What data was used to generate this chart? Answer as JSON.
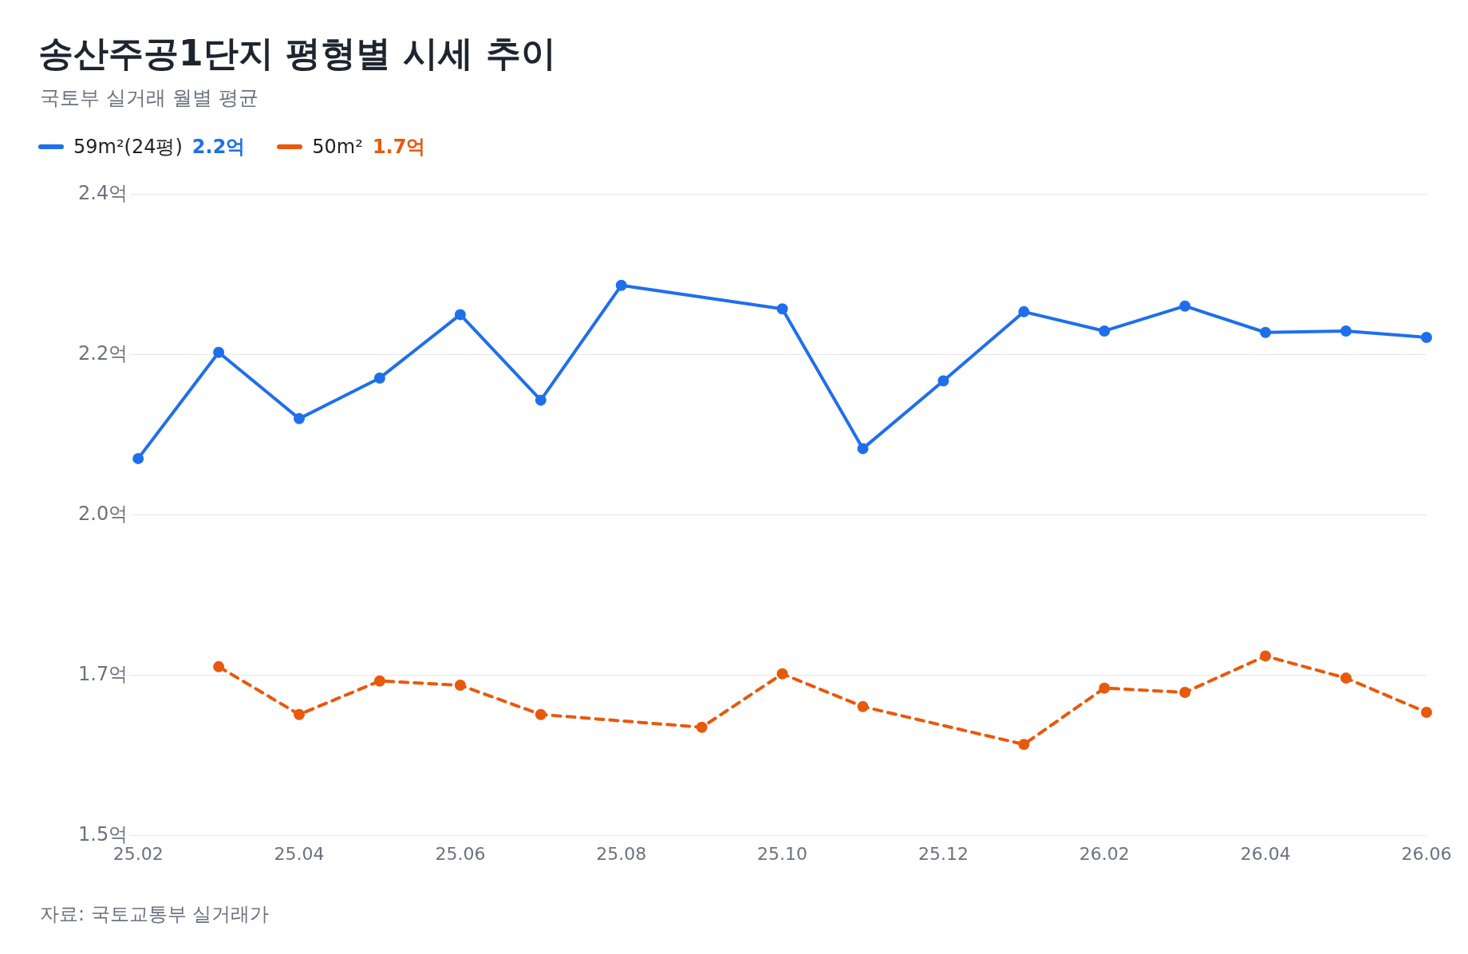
{
  "chart_data": {
    "type": "line",
    "title": "송산주공1단지 평형별 시세 추이",
    "subtitle": "국토부 실거래 월별 평균",
    "categories": [
      "25.02",
      null,
      "25.04",
      null,
      "25.06",
      null,
      "25.08",
      null,
      "25.10",
      null,
      "25.12",
      null,
      "26.02",
      null,
      "26.04",
      null,
      "26.06"
    ],
    "series": [
      {
        "name": "59m²(24평)",
        "color": "#1f6feb",
        "line_style": "solid",
        "values": [
          2.029,
          2.178,
          2.085,
          2.142,
          2.231,
          2.111,
          2.272,
          null,
          2.239,
          2.043,
          2.138,
          2.235,
          2.208,
          2.243,
          2.206,
          2.208,
          2.199
        ]
      },
      {
        "name": "50m²",
        "color": "#e8590c",
        "line_style": "dashed",
        "values": [
          null,
          1.737,
          1.67,
          1.717,
          1.711,
          1.67,
          null,
          1.652,
          1.727,
          1.681,
          null,
          1.628,
          1.707,
          1.701,
          1.752,
          1.721,
          1.673
        ]
      }
    ],
    "ylim": [
      1.5,
      2.4
    ],
    "yticks": [
      {
        "value": 1.5,
        "label": "1.5억"
      },
      {
        "value": 1.725,
        "label": "1.7억"
      },
      {
        "value": 1.95,
        "label": "2.0억"
      },
      {
        "value": 2.175,
        "label": "2.2억"
      },
      {
        "value": 2.4,
        "label": "2.4억"
      }
    ],
    "grid": "y",
    "legend": "top left",
    "marker": "circle",
    "annotations": [
      "2.2억",
      "1.7억",
      "자료: 국토교통부 실거래가"
    ]
  }
}
